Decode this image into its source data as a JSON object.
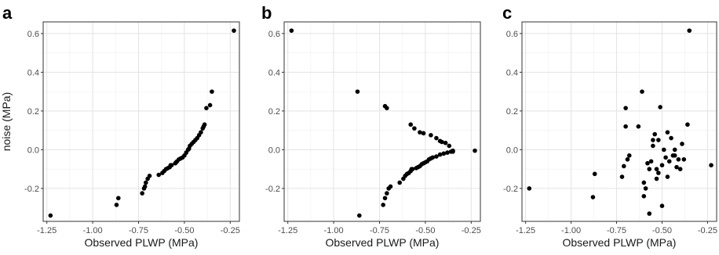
{
  "chart_data": [
    {
      "type": "scatter",
      "panel_label": "a",
      "xlabel": "Observed PLWP (MPa)",
      "ylabel": "noise (MPa)",
      "xlim": [
        -1.27,
        -0.2
      ],
      "ylim": [
        -0.37,
        0.66
      ],
      "xticks": [
        -1.25,
        -1.0,
        -0.75,
        -0.5,
        -0.25
      ],
      "xtick_labels": [
        "-1.25",
        "-1.00",
        "-0.75",
        "-0.50",
        "-0.25"
      ],
      "yticks": [
        -0.2,
        0.0,
        0.2,
        0.4,
        0.6
      ],
      "ytick_labels": [
        "-0.2",
        "0.0",
        "0.2",
        "0.4",
        "0.6"
      ],
      "grid": true,
      "x": [
        -1.23,
        -0.87,
        -0.86,
        -0.73,
        -0.72,
        -0.715,
        -0.71,
        -0.7,
        -0.69,
        -0.64,
        -0.62,
        -0.61,
        -0.6,
        -0.59,
        -0.58,
        -0.575,
        -0.57,
        -0.55,
        -0.545,
        -0.54,
        -0.53,
        -0.52,
        -0.51,
        -0.5,
        -0.49,
        -0.48,
        -0.475,
        -0.47,
        -0.46,
        -0.45,
        -0.44,
        -0.43,
        -0.42,
        -0.41,
        -0.4,
        -0.395,
        -0.39,
        -0.38,
        -0.36,
        -0.35,
        -0.23
      ],
      "y": [
        -0.34,
        -0.285,
        -0.25,
        -0.225,
        -0.2,
        -0.19,
        -0.17,
        -0.15,
        -0.135,
        -0.13,
        -0.12,
        -0.11,
        -0.1,
        -0.095,
        -0.09,
        -0.08,
        -0.08,
        -0.07,
        -0.065,
        -0.06,
        -0.05,
        -0.045,
        -0.04,
        -0.03,
        -0.015,
        0.0,
        0.005,
        0.02,
        0.03,
        0.04,
        0.05,
        0.06,
        0.075,
        0.09,
        0.11,
        0.12,
        0.13,
        0.215,
        0.23,
        0.3,
        0.615
      ]
    },
    {
      "type": "scatter",
      "panel_label": "b",
      "xlabel": "Observed PLWP (MPa)",
      "ylabel": "",
      "xlim": [
        -1.27,
        -0.2
      ],
      "ylim": [
        -0.37,
        0.66
      ],
      "xticks": [
        -1.25,
        -1.0,
        -0.75,
        -0.5,
        -0.25
      ],
      "xtick_labels": [
        "-1.25",
        "-1.00",
        "-0.75",
        "-0.50",
        "-0.25"
      ],
      "yticks": [
        -0.2,
        0.0,
        0.2,
        0.4,
        0.6
      ],
      "ytick_labels": [
        "-0.2",
        "0.0",
        "0.2",
        "0.4",
        "0.6"
      ],
      "grid": true,
      "x": [
        -1.23,
        -0.87,
        -0.86,
        -0.72,
        -0.71,
        -0.73,
        -0.72,
        -0.71,
        -0.7,
        -0.69,
        -0.64,
        -0.62,
        -0.61,
        -0.6,
        -0.59,
        -0.58,
        -0.575,
        -0.57,
        -0.55,
        -0.54,
        -0.53,
        -0.52,
        -0.51,
        -0.5,
        -0.49,
        -0.48,
        -0.47,
        -0.46,
        -0.44,
        -0.42,
        -0.4,
        -0.38,
        -0.36,
        -0.35,
        -0.35,
        -0.37,
        -0.39,
        -0.41,
        -0.42,
        -0.44,
        -0.47,
        -0.51,
        -0.53,
        -0.56,
        -0.58,
        -0.23
      ],
      "y": [
        0.615,
        0.3,
        -0.34,
        0.225,
        0.215,
        -0.285,
        -0.25,
        -0.225,
        -0.2,
        -0.19,
        -0.17,
        -0.15,
        -0.135,
        -0.125,
        -0.12,
        -0.11,
        -0.1,
        -0.1,
        -0.095,
        -0.09,
        -0.085,
        -0.075,
        -0.07,
        -0.065,
        -0.06,
        -0.05,
        -0.045,
        -0.04,
        -0.035,
        -0.025,
        -0.02,
        -0.015,
        -0.01,
        -0.005,
        -0.01,
        0.02,
        0.035,
        0.04,
        0.045,
        0.06,
        0.075,
        0.085,
        0.09,
        0.11,
        0.13,
        -0.005
      ]
    },
    {
      "type": "scatter",
      "panel_label": "c",
      "xlabel": "Observed PLWP (MPa)",
      "ylabel": "",
      "xlim": [
        -1.27,
        -0.2
      ],
      "ylim": [
        -0.37,
        0.66
      ],
      "xticks": [
        -1.25,
        -1.0,
        -0.75,
        -0.5,
        -0.25
      ],
      "xtick_labels": [
        "-1.25",
        "-1.00",
        "-0.75",
        "-0.50",
        "-0.25"
      ],
      "yticks": [
        -0.2,
        0.0,
        0.2,
        0.4,
        0.6
      ],
      "ytick_labels": [
        "-0.2",
        "0.0",
        "0.2",
        "0.4",
        "0.6"
      ],
      "grid": true,
      "x": [
        -1.23,
        -0.88,
        -0.87,
        -0.72,
        -0.71,
        -0.7,
        -0.7,
        -0.69,
        -0.68,
        -0.63,
        -0.61,
        -0.6,
        -0.6,
        -0.59,
        -0.58,
        -0.57,
        -0.57,
        -0.56,
        -0.55,
        -0.55,
        -0.54,
        -0.53,
        -0.53,
        -0.52,
        -0.52,
        -0.51,
        -0.5,
        -0.5,
        -0.49,
        -0.48,
        -0.47,
        -0.47,
        -0.46,
        -0.45,
        -0.44,
        -0.43,
        -0.43,
        -0.42,
        -0.41,
        -0.4,
        -0.39,
        -0.38,
        -0.36,
        -0.35,
        -0.23
      ],
      "y": [
        -0.2,
        -0.245,
        -0.125,
        -0.14,
        -0.085,
        0.12,
        0.215,
        -0.05,
        -0.03,
        0.12,
        0.3,
        -0.17,
        -0.24,
        -0.2,
        -0.07,
        -0.1,
        -0.33,
        -0.06,
        0.02,
        0.05,
        0.08,
        -0.1,
        -0.15,
        -0.12,
        0.05,
        0.22,
        -0.08,
        -0.29,
        0.0,
        -0.04,
        0.09,
        -0.14,
        -0.06,
        0.06,
        -0.03,
        -0.03,
        0.0,
        -0.09,
        -0.05,
        -0.1,
        0.03,
        -0.05,
        0.13,
        0.615,
        -0.08
      ]
    }
  ]
}
